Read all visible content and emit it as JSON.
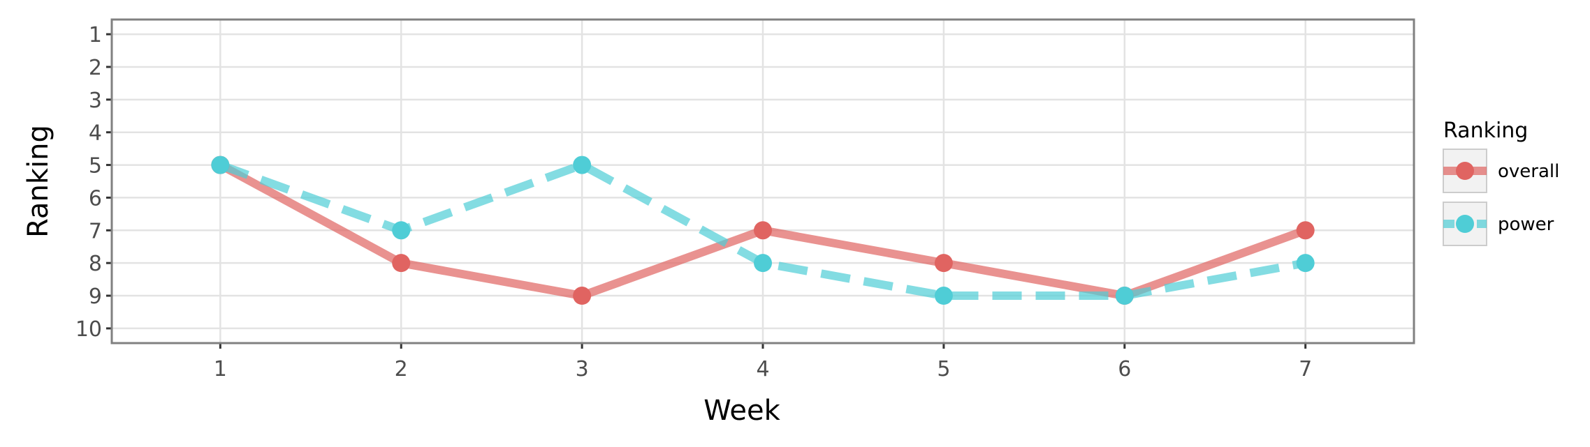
{
  "chart_data": {
    "type": "line",
    "title": "",
    "xlabel": "Week",
    "ylabel": "Ranking",
    "x": [
      1,
      2,
      3,
      4,
      5,
      6,
      7
    ],
    "x_ticks": [
      "1",
      "2",
      "3",
      "4",
      "5",
      "6",
      "7"
    ],
    "y_ticks": [
      "1",
      "2",
      "3",
      "4",
      "5",
      "6",
      "7",
      "8",
      "9",
      "10"
    ],
    "xlim": [
      0.4,
      7.6
    ],
    "ylim": [
      10.45,
      0.55
    ],
    "y_reversed": true,
    "grid": true,
    "legend": {
      "title": "Ranking",
      "placement": "right"
    },
    "series": [
      {
        "name": "overall",
        "values": [
          5,
          8,
          9,
          7,
          8,
          9,
          7
        ],
        "color": "#e06461",
        "line_style": "solid"
      },
      {
        "name": "power",
        "values": [
          5,
          7,
          5,
          8,
          9,
          9,
          8
        ],
        "color": "#4fcdd6",
        "line_style": "dashed"
      }
    ]
  }
}
